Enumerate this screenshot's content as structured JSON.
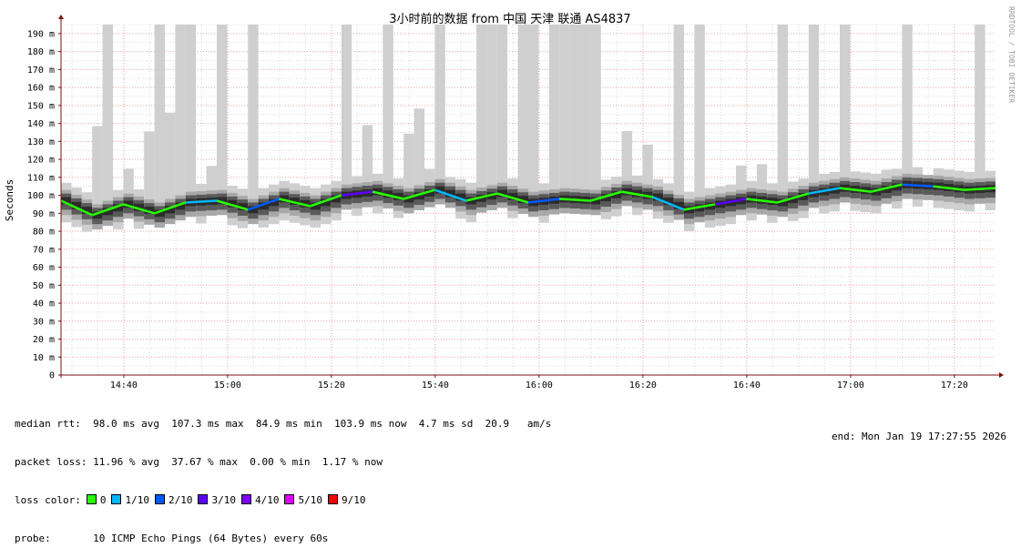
{
  "chart_data": {
    "type": "line",
    "title": "3小时前的数据 from 中国 天津 联通 AS4837",
    "ylabel": "Seconds",
    "side_label": "RRDTOOL / TOBI OETIKER",
    "y_unit_suffix": "m",
    "ylim": [
      0,
      195
    ],
    "yticks": [
      0,
      10,
      20,
      30,
      40,
      50,
      60,
      70,
      80,
      90,
      100,
      110,
      120,
      130,
      140,
      150,
      160,
      170,
      180,
      190
    ],
    "x_start": "14:27:55",
    "x_end": "17:27:55",
    "xticks": [
      "14:40",
      "15:00",
      "15:20",
      "15:40",
      "16:00",
      "16:20",
      "16:40",
      "17:00",
      "17:20"
    ],
    "grid": true,
    "median_rtt_ms": {
      "x_minutes_from_start": [
        0,
        6,
        12,
        18,
        24,
        30,
        36,
        42,
        48,
        54,
        60,
        66,
        72,
        78,
        84,
        90,
        96,
        102,
        108,
        114,
        120,
        126,
        132,
        138,
        144,
        150,
        156,
        162,
        168,
        174,
        180
      ],
      "values": [
        97,
        89,
        95,
        90,
        96,
        97,
        92,
        98,
        94,
        100,
        102,
        98,
        103,
        97,
        101,
        96,
        98,
        97,
        102,
        99,
        92,
        95,
        98,
        96,
        101,
        104,
        102,
        106,
        105,
        103,
        104
      ]
    },
    "loss_timeline": [
      0,
      0,
      0,
      0,
      1,
      0,
      2,
      0,
      0,
      3,
      0,
      0,
      1,
      0,
      0,
      2,
      0,
      0,
      0,
      1,
      0,
      3,
      0,
      0,
      1,
      0,
      0,
      2,
      0,
      0,
      0
    ]
  },
  "legend": {
    "median_rtt_label": "median rtt:",
    "median_rtt_text": "98.0 ms avg  107.3 ms max  84.9 ms min  103.9 ms now  4.7 ms sd  20.9   am/s",
    "packet_loss_label": "packet loss:",
    "packet_loss_text": "11.96 % avg  37.67 % max  0.00 % min  1.17 % now",
    "loss_color_label": "loss color:",
    "loss_colors": [
      {
        "label": "0",
        "color": "#26ff00"
      },
      {
        "label": "1/10",
        "color": "#00b8ff"
      },
      {
        "label": "2/10",
        "color": "#0059ff"
      },
      {
        "label": "3/10",
        "color": "#5e00ff"
      },
      {
        "label": "4/10",
        "color": "#7e00ff"
      },
      {
        "label": "5/10",
        "color": "#dd00ff"
      },
      {
        "label": "9/10",
        "color": "#ff0000"
      }
    ],
    "probe_label": "probe:",
    "probe_text": "10 ICMP Echo Pings (64 Bytes) every 60s",
    "end_text": "end: Mon Jan 19 17:27:55 2026"
  },
  "colors": {
    "background": "#ffffff",
    "grid_minor": "#dcdcdc",
    "grid_major": "#e8a0a0",
    "axis": "#7a1010",
    "smoke_light": "#cfcfcf",
    "smoke_mid": "#a8a8a8",
    "smoke_dark": "#5a5a5a",
    "smoke_darkest": "#2c2c2c"
  }
}
